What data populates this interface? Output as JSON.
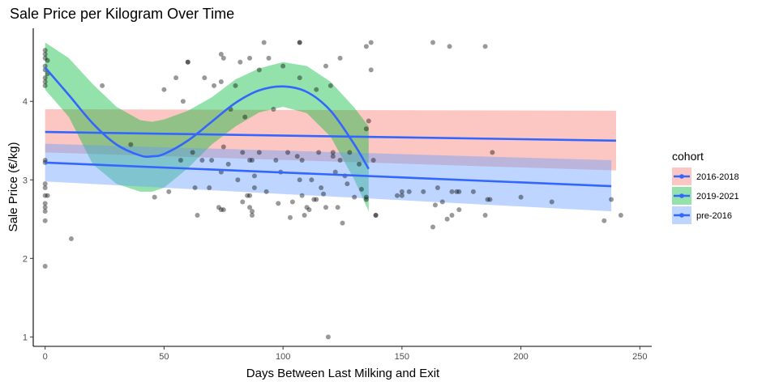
{
  "chart_data": {
    "type": "scatter",
    "title": "Sale Price per Kilogram Over Time",
    "xlabel": "Days Between Last Milking and Exit",
    "ylabel": "Sale Price (€/kg)",
    "xlim": [
      -5,
      255
    ],
    "ylim": [
      0.88,
      4.93
    ],
    "x_ticks": [
      0,
      50,
      100,
      150,
      200,
      250
    ],
    "y_ticks": [
      1,
      2,
      3,
      4
    ],
    "grid": false,
    "legend": {
      "title": "cohort",
      "position": "right",
      "entries": [
        "2016-2018",
        "2019-2021",
        "pre-2016"
      ]
    },
    "points": [
      [
        0,
        4.65
      ],
      [
        0,
        4.6
      ],
      [
        0,
        4.55
      ],
      [
        1,
        4.52
      ],
      [
        0,
        4.45
      ],
      [
        0,
        4.4
      ],
      [
        1,
        4.35
      ],
      [
        0,
        4.3
      ],
      [
        0,
        4.25
      ],
      [
        0,
        4.2
      ],
      [
        0,
        3.25
      ],
      [
        0,
        3.22
      ],
      [
        0,
        2.95
      ],
      [
        0,
        2.9
      ],
      [
        0,
        2.8
      ],
      [
        1,
        2.8
      ],
      [
        0,
        2.7
      ],
      [
        0,
        2.65
      ],
      [
        0,
        2.6
      ],
      [
        0,
        2.48
      ],
      [
        0,
        1.9
      ],
      [
        11,
        2.25
      ],
      [
        24,
        4.2
      ],
      [
        36,
        3.45
      ],
      [
        46,
        2.78
      ],
      [
        50,
        4.15
      ],
      [
        52,
        2.85
      ],
      [
        55,
        4.3
      ],
      [
        57,
        3.25
      ],
      [
        58,
        4.0
      ],
      [
        60,
        4.5
      ],
      [
        60,
        4.5
      ],
      [
        62,
        3.35
      ],
      [
        63,
        2.9
      ],
      [
        64,
        2.55
      ],
      [
        66,
        3.25
      ],
      [
        67,
        4.3
      ],
      [
        69,
        2.9
      ],
      [
        70,
        3.25
      ],
      [
        71,
        4.2
      ],
      [
        73,
        2.65
      ],
      [
        74,
        2.62
      ],
      [
        74,
        3.1
      ],
      [
        74,
        4.25
      ],
      [
        74,
        4.6
      ],
      [
        75,
        4.55
      ],
      [
        75,
        3.42
      ],
      [
        75,
        2.62
      ],
      [
        77,
        3.2
      ],
      [
        78,
        3.9
      ],
      [
        80,
        4.2
      ],
      [
        81,
        3.0
      ],
      [
        82,
        4.5
      ],
      [
        83,
        3.35
      ],
      [
        83,
        2.72
      ],
      [
        84,
        3.8
      ],
      [
        85,
        2.8
      ],
      [
        86,
        2.65
      ],
      [
        86,
        2.8
      ],
      [
        86,
        3.25
      ],
      [
        86,
        4.55
      ],
      [
        87,
        3.25
      ],
      [
        87,
        2.55
      ],
      [
        87,
        2.6
      ],
      [
        88,
        3.05
      ],
      [
        88,
        2.9
      ],
      [
        90,
        3.35
      ],
      [
        90,
        4.4
      ],
      [
        92,
        4.75
      ],
      [
        93,
        2.85
      ],
      [
        94,
        4.55
      ],
      [
        96,
        3.9
      ],
      [
        97,
        3.25
      ],
      [
        98,
        2.7
      ],
      [
        99,
        3.1
      ],
      [
        100,
        4.45
      ],
      [
        102,
        3.35
      ],
      [
        103,
        2.52
      ],
      [
        104,
        2.72
      ],
      [
        106,
        3.3
      ],
      [
        107,
        4.3
      ],
      [
        107,
        4.75
      ],
      [
        107,
        4.75
      ],
      [
        107,
        3.0
      ],
      [
        108,
        2.8
      ],
      [
        108,
        3.25
      ],
      [
        109,
        2.55
      ],
      [
        110,
        2.65
      ],
      [
        111,
        2.62
      ],
      [
        112,
        3.0
      ],
      [
        113,
        2.75
      ],
      [
        114,
        2.75
      ],
      [
        114,
        4.15
      ],
      [
        115,
        3.35
      ],
      [
        116,
        2.9
      ],
      [
        117,
        2.82
      ],
      [
        118,
        2.65
      ],
      [
        118,
        4.45
      ],
      [
        119,
        1.0
      ],
      [
        120,
        4.2
      ],
      [
        121,
        3.35
      ],
      [
        121,
        3.3
      ],
      [
        122,
        3.1
      ],
      [
        123,
        2.65
      ],
      [
        124,
        4.55
      ],
      [
        124,
        3.25
      ],
      [
        125,
        2.45
      ],
      [
        126,
        3.05
      ],
      [
        127,
        2.95
      ],
      [
        128,
        3.35
      ],
      [
        130,
        2.78
      ],
      [
        132,
        3.2
      ],
      [
        133,
        2.88
      ],
      [
        135,
        2.78
      ],
      [
        135,
        3.65
      ],
      [
        135,
        2.75
      ],
      [
        135,
        4.7
      ],
      [
        136,
        3.75
      ],
      [
        137,
        4.75
      ],
      [
        137,
        4.4
      ],
      [
        138,
        3.25
      ],
      [
        139,
        2.55
      ],
      [
        139,
        2.55
      ],
      [
        148,
        2.8
      ],
      [
        150,
        2.8
      ],
      [
        150,
        2.85
      ],
      [
        153,
        2.85
      ],
      [
        159,
        2.85
      ],
      [
        163,
        2.4
      ],
      [
        163,
        4.75
      ],
      [
        164,
        2.68
      ],
      [
        165,
        2.9
      ],
      [
        167,
        2.72
      ],
      [
        169,
        2.5
      ],
      [
        170,
        4.7
      ],
      [
        171,
        2.85
      ],
      [
        171,
        2.55
      ],
      [
        173,
        2.85
      ],
      [
        174,
        2.85
      ],
      [
        174,
        2.62
      ],
      [
        180,
        2.85
      ],
      [
        185,
        2.55
      ],
      [
        185,
        4.7
      ],
      [
        186,
        2.75
      ],
      [
        187,
        2.75
      ],
      [
        188,
        3.35
      ],
      [
        200,
        2.78
      ],
      [
        213,
        2.72
      ],
      [
        235,
        2.48
      ],
      [
        238,
        2.75
      ],
      [
        242,
        2.55
      ]
    ],
    "series": [
      {
        "name": "2016-2018",
        "color": "#F8766D",
        "fit": {
          "x": [
            0,
            240
          ],
          "y": [
            3.61,
            3.5
          ]
        },
        "ribbon": {
          "x": [
            0,
            240
          ],
          "lower": [
            3.35,
            3.12
          ],
          "upper": [
            3.9,
            3.88
          ]
        }
      },
      {
        "name": "2019-2021",
        "color": "#00BA38",
        "fit": {
          "x": [
            0,
            10,
            20,
            30,
            40,
            45,
            50,
            60,
            70,
            80,
            90,
            100,
            110,
            120,
            130,
            136
          ],
          "y": [
            4.43,
            4.08,
            3.72,
            3.45,
            3.31,
            3.3,
            3.33,
            3.5,
            3.74,
            3.98,
            4.14,
            4.19,
            4.12,
            3.88,
            3.45,
            3.14
          ]
        },
        "ribbon": {
          "x": [
            0,
            10,
            20,
            30,
            40,
            45,
            50,
            60,
            70,
            80,
            90,
            100,
            110,
            120,
            130,
            136
          ],
          "lower": [
            4.15,
            3.8,
            3.2,
            2.95,
            2.85,
            2.85,
            2.9,
            3.15,
            3.45,
            3.68,
            3.86,
            3.93,
            3.85,
            3.55,
            3.0,
            2.6
          ],
          "upper": [
            4.75,
            4.55,
            4.22,
            3.93,
            3.76,
            3.74,
            3.77,
            3.88,
            4.05,
            4.28,
            4.42,
            4.5,
            4.45,
            4.25,
            3.92,
            3.68
          ]
        }
      },
      {
        "name": "pre-2016",
        "color": "#619CFF",
        "fit": {
          "x": [
            0,
            238
          ],
          "y": [
            3.22,
            2.92
          ]
        },
        "ribbon": {
          "x": [
            0,
            238
          ],
          "lower": [
            2.98,
            2.6
          ],
          "upper": [
            3.46,
            3.25
          ]
        }
      }
    ],
    "fit_line_color": "#3366FF",
    "point_color": "#000000"
  }
}
